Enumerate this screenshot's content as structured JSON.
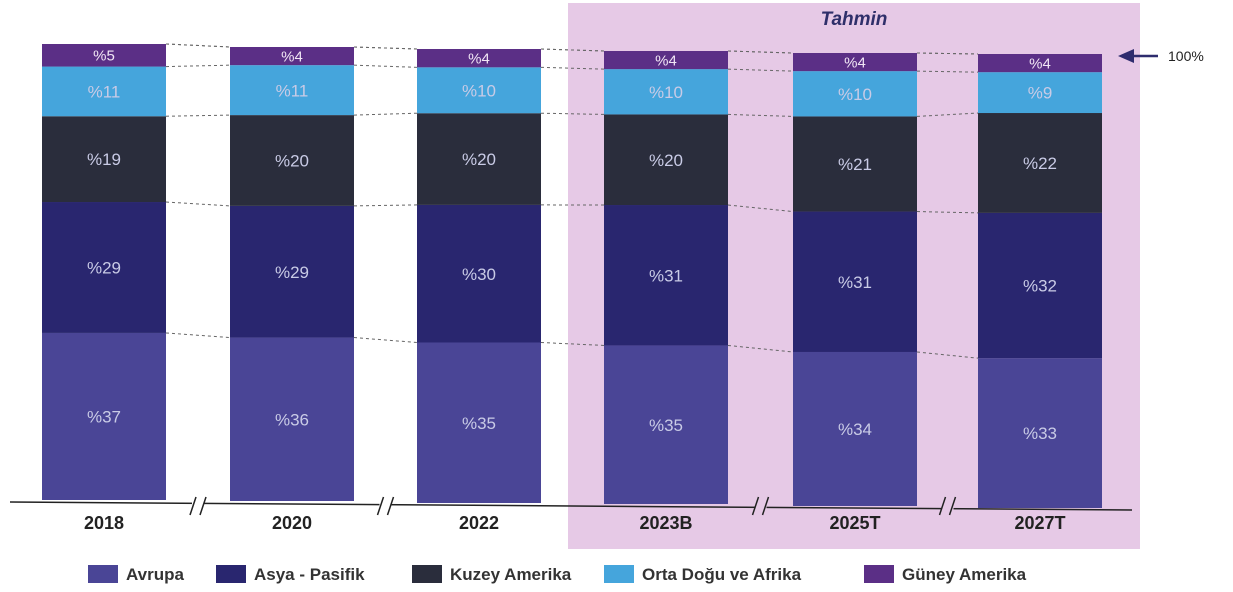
{
  "chart_data": {
    "type": "bar",
    "stacked": true,
    "normalized": true,
    "categories": [
      "2018",
      "2020",
      "2022",
      "2023B",
      "2025T",
      "2027T"
    ],
    "series": [
      {
        "name": "Avrupa",
        "color": "#4a4596",
        "values": [
          37,
          36,
          35,
          35,
          34,
          33
        ],
        "labels": [
          "%37",
          "%36",
          "%35",
          "%35",
          "%34",
          "%33"
        ]
      },
      {
        "name": "Asya - Pasifik",
        "color": "#29266f",
        "values": [
          29,
          29,
          30,
          31,
          31,
          32
        ],
        "labels": [
          "%29",
          "%29",
          "%30",
          "%31",
          "%31",
          "%32"
        ]
      },
      {
        "name": "Kuzey Amerika",
        "color": "#2a2d3c",
        "values": [
          19,
          20,
          20,
          20,
          21,
          22
        ],
        "labels": [
          "%19",
          "%20",
          "%20",
          "%20",
          "%21",
          "%22"
        ]
      },
      {
        "name": "Orta Doğu ve Afrika",
        "color": "#45a5dc",
        "values": [
          11,
          11,
          10,
          10,
          10,
          9
        ],
        "labels": [
          "%11",
          "%11",
          "%10",
          "%10",
          "%10",
          "%9"
        ]
      },
      {
        "name": "Güney Amerika",
        "color": "#5b2f86",
        "values": [
          5,
          4,
          4,
          4,
          4,
          4
        ],
        "labels": [
          "%5",
          "%4",
          "%4",
          "%4",
          "%4",
          "%4"
        ]
      }
    ],
    "forecast_label": "Tahmin",
    "forecast_categories": [
      "2023B",
      "2025T",
      "2027T"
    ],
    "forecast_color": "#e6c9e6",
    "total_marker": "100%",
    "axis_breaks_between": [
      [
        "2018",
        "2020"
      ],
      [
        "2020",
        "2022"
      ],
      [
        "2023B",
        "2025T"
      ],
      [
        "2025T",
        "2027T"
      ]
    ],
    "legend_position": "bottom",
    "grid": false
  }
}
